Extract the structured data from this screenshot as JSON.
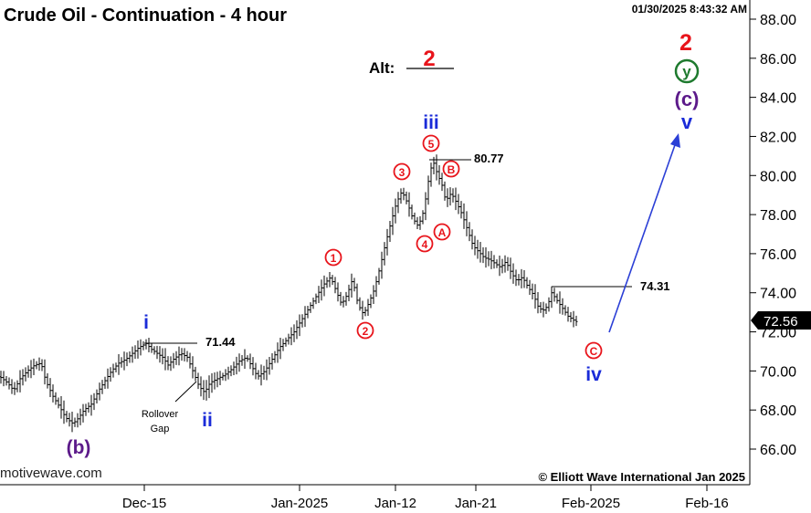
{
  "header": {
    "title": "Crude Oil - Continuation - 4 hour",
    "timestamp": "01/30/2025 8:43:32 AM"
  },
  "watermarks": {
    "left": "motivewave.com",
    "right": "© Elliott Wave International Jan 2025"
  },
  "chart_data": {
    "type": "candlestick",
    "title": "Crude Oil - Continuation - 4 hour",
    "y_axis": {
      "position": "right",
      "ylim": [
        64.8,
        88.8
      ],
      "ticks": [
        "88.00",
        "86.00",
        "84.00",
        "82.00",
        "80.00",
        "78.00",
        "76.00",
        "74.00",
        "72.00",
        "70.00",
        "68.00",
        "66.00"
      ]
    },
    "x_axis": {
      "ticks": [
        "Dec-15",
        "Jan-2025",
        "Jan-12",
        "Jan-21",
        "Feb-2025",
        "Feb-16"
      ]
    },
    "last_price": "72.56",
    "price_path": [
      [
        0,
        69.7
      ],
      [
        8,
        69.4
      ],
      [
        15,
        69.0
      ],
      [
        22,
        69.6
      ],
      [
        30,
        70.0
      ],
      [
        38,
        70.3
      ],
      [
        45,
        70.4
      ],
      [
        50,
        69.5
      ],
      [
        58,
        68.7
      ],
      [
        66,
        68.1
      ],
      [
        72,
        67.6
      ],
      [
        80,
        67.3
      ],
      [
        86,
        67.6
      ],
      [
        92,
        68.0
      ],
      [
        100,
        68.3
      ],
      [
        108,
        69.0
      ],
      [
        115,
        69.5
      ],
      [
        122,
        70.0
      ],
      [
        130,
        70.4
      ],
      [
        138,
        70.6
      ],
      [
        145,
        70.9
      ],
      [
        152,
        71.2
      ],
      [
        160,
        71.4
      ],
      [
        166,
        71.1
      ],
      [
        172,
        70.9
      ],
      [
        178,
        70.7
      ],
      [
        184,
        70.3
      ],
      [
        190,
        70.6
      ],
      [
        198,
        70.9
      ],
      [
        205,
        70.7
      ],
      [
        212,
        69.9
      ],
      [
        218,
        69.2
      ],
      [
        224,
        68.9
      ],
      [
        230,
        69.4
      ],
      [
        238,
        69.6
      ],
      [
        246,
        69.8
      ],
      [
        254,
        70.1
      ],
      [
        262,
        70.5
      ],
      [
        270,
        70.7
      ],
      [
        276,
        70.2
      ],
      [
        282,
        69.7
      ],
      [
        290,
        70.0
      ],
      [
        298,
        70.6
      ],
      [
        306,
        71.2
      ],
      [
        314,
        71.6
      ],
      [
        322,
        72.0
      ],
      [
        330,
        72.6
      ],
      [
        338,
        73.2
      ],
      [
        346,
        73.8
      ],
      [
        354,
        74.4
      ],
      [
        362,
        74.8
      ],
      [
        368,
        74.1
      ],
      [
        374,
        73.4
      ],
      [
        380,
        73.9
      ],
      [
        386,
        74.7
      ],
      [
        392,
        73.4
      ],
      [
        398,
        72.9
      ],
      [
        404,
        73.5
      ],
      [
        410,
        74.2
      ],
      [
        416,
        75.3
      ],
      [
        422,
        76.5
      ],
      [
        428,
        77.6
      ],
      [
        434,
        78.6
      ],
      [
        440,
        79.2
      ],
      [
        446,
        78.6
      ],
      [
        452,
        77.8
      ],
      [
        458,
        77.4
      ],
      [
        464,
        78.2
      ],
      [
        470,
        80.0
      ],
      [
        474,
        80.77
      ],
      [
        478,
        80.2
      ],
      [
        484,
        79.5
      ],
      [
        488,
        78.7
      ],
      [
        494,
        79.1
      ],
      [
        500,
        78.6
      ],
      [
        506,
        78.0
      ],
      [
        512,
        77.2
      ],
      [
        518,
        76.4
      ],
      [
        524,
        76.1
      ],
      [
        530,
        75.8
      ],
      [
        536,
        75.7
      ],
      [
        542,
        75.5
      ],
      [
        548,
        75.3
      ],
      [
        554,
        75.6
      ],
      [
        560,
        75.0
      ],
      [
        566,
        74.6
      ],
      [
        572,
        74.8
      ],
      [
        578,
        74.3
      ],
      [
        584,
        73.9
      ],
      [
        590,
        73.2
      ],
      [
        596,
        73.1
      ],
      [
        600,
        73.4
      ],
      [
        604,
        74.0
      ],
      [
        610,
        73.6
      ],
      [
        616,
        73.2
      ],
      [
        622,
        72.8
      ],
      [
        628,
        72.6
      ],
      [
        632,
        72.5
      ]
    ],
    "annotations": {
      "alt": "Alt:",
      "alt_wave": "2",
      "top_wave": "2",
      "wave_y": "y",
      "wave_c_major": "(c)",
      "wave_v": "v",
      "wave_iii": "iii",
      "wave_i": "i",
      "wave_ii": "ii",
      "wave_iv": "iv",
      "wave_b_major": "(b)",
      "level_high": "80.77",
      "level_mid": "74.31",
      "level_low": "71.44",
      "rollover": "Rollover",
      "gap": "Gap",
      "circle_1": "1",
      "circle_2": "2",
      "circle_3": "3",
      "circle_4": "4",
      "circle_5": "5",
      "circle_A": "A",
      "circle_B": "B",
      "circle_C": "C"
    },
    "colors": {
      "red": "#e8141b",
      "blue": "#1a2bd8",
      "purple": "#5c1a8a",
      "green": "#1e7a2e",
      "arrow": "#2b3fd6"
    }
  }
}
